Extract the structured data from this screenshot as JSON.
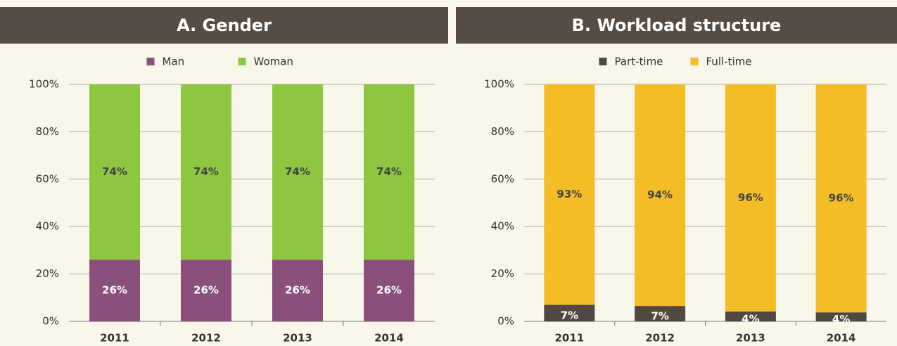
{
  "chart_data": [
    {
      "type": "stacked_bar",
      "title": "A. Gender",
      "categories": [
        "2011",
        "2012",
        "2013",
        "2014"
      ],
      "series": [
        {
          "name": "Man",
          "color": "#8a4f7a",
          "values": [
            26,
            26,
            26,
            26
          ],
          "value_labels": [
            "26%",
            "26%",
            "26%",
            "26%"
          ]
        },
        {
          "name": "Woman",
          "color": "#8dc63f",
          "values": [
            74,
            74,
            74,
            74
          ],
          "value_labels": [
            "74%",
            "74%",
            "74%",
            "74%"
          ]
        }
      ],
      "ylim": [
        0,
        100
      ],
      "yticks": [
        {
          "value": 0,
          "label": "0%"
        },
        {
          "value": 20,
          "label": "20%"
        },
        {
          "value": 40,
          "label": "40%"
        },
        {
          "value": 60,
          "label": "60%"
        },
        {
          "value": 80,
          "label": "80%"
        },
        {
          "value": 100,
          "label": "100%"
        }
      ],
      "grid": true,
      "legend": "top"
    },
    {
      "type": "stacked_bar",
      "title": "B. Workload structure",
      "categories": [
        "2011",
        "2012",
        "2013",
        "2014"
      ],
      "series": [
        {
          "name": "Part-time",
          "color": "#514842",
          "values": [
            7,
            6.5,
            4.2,
            3.8
          ],
          "value_labels": [
            "7%",
            "7%",
            "4%",
            "4%"
          ]
        },
        {
          "name": "Full-time",
          "color": "#f5bd25",
          "values": [
            93,
            93.5,
            95.8,
            96.2
          ],
          "value_labels": [
            "93%",
            "94%",
            "96%",
            "96%"
          ]
        }
      ],
      "ylim": [
        0,
        100
      ],
      "yticks": [
        {
          "value": 0,
          "label": "0%"
        },
        {
          "value": 20,
          "label": "20%"
        },
        {
          "value": 40,
          "label": "40%"
        },
        {
          "value": 60,
          "label": "60%"
        },
        {
          "value": 80,
          "label": "80%"
        },
        {
          "value": 100,
          "label": "100%"
        }
      ],
      "grid": true,
      "legend": "top"
    }
  ]
}
